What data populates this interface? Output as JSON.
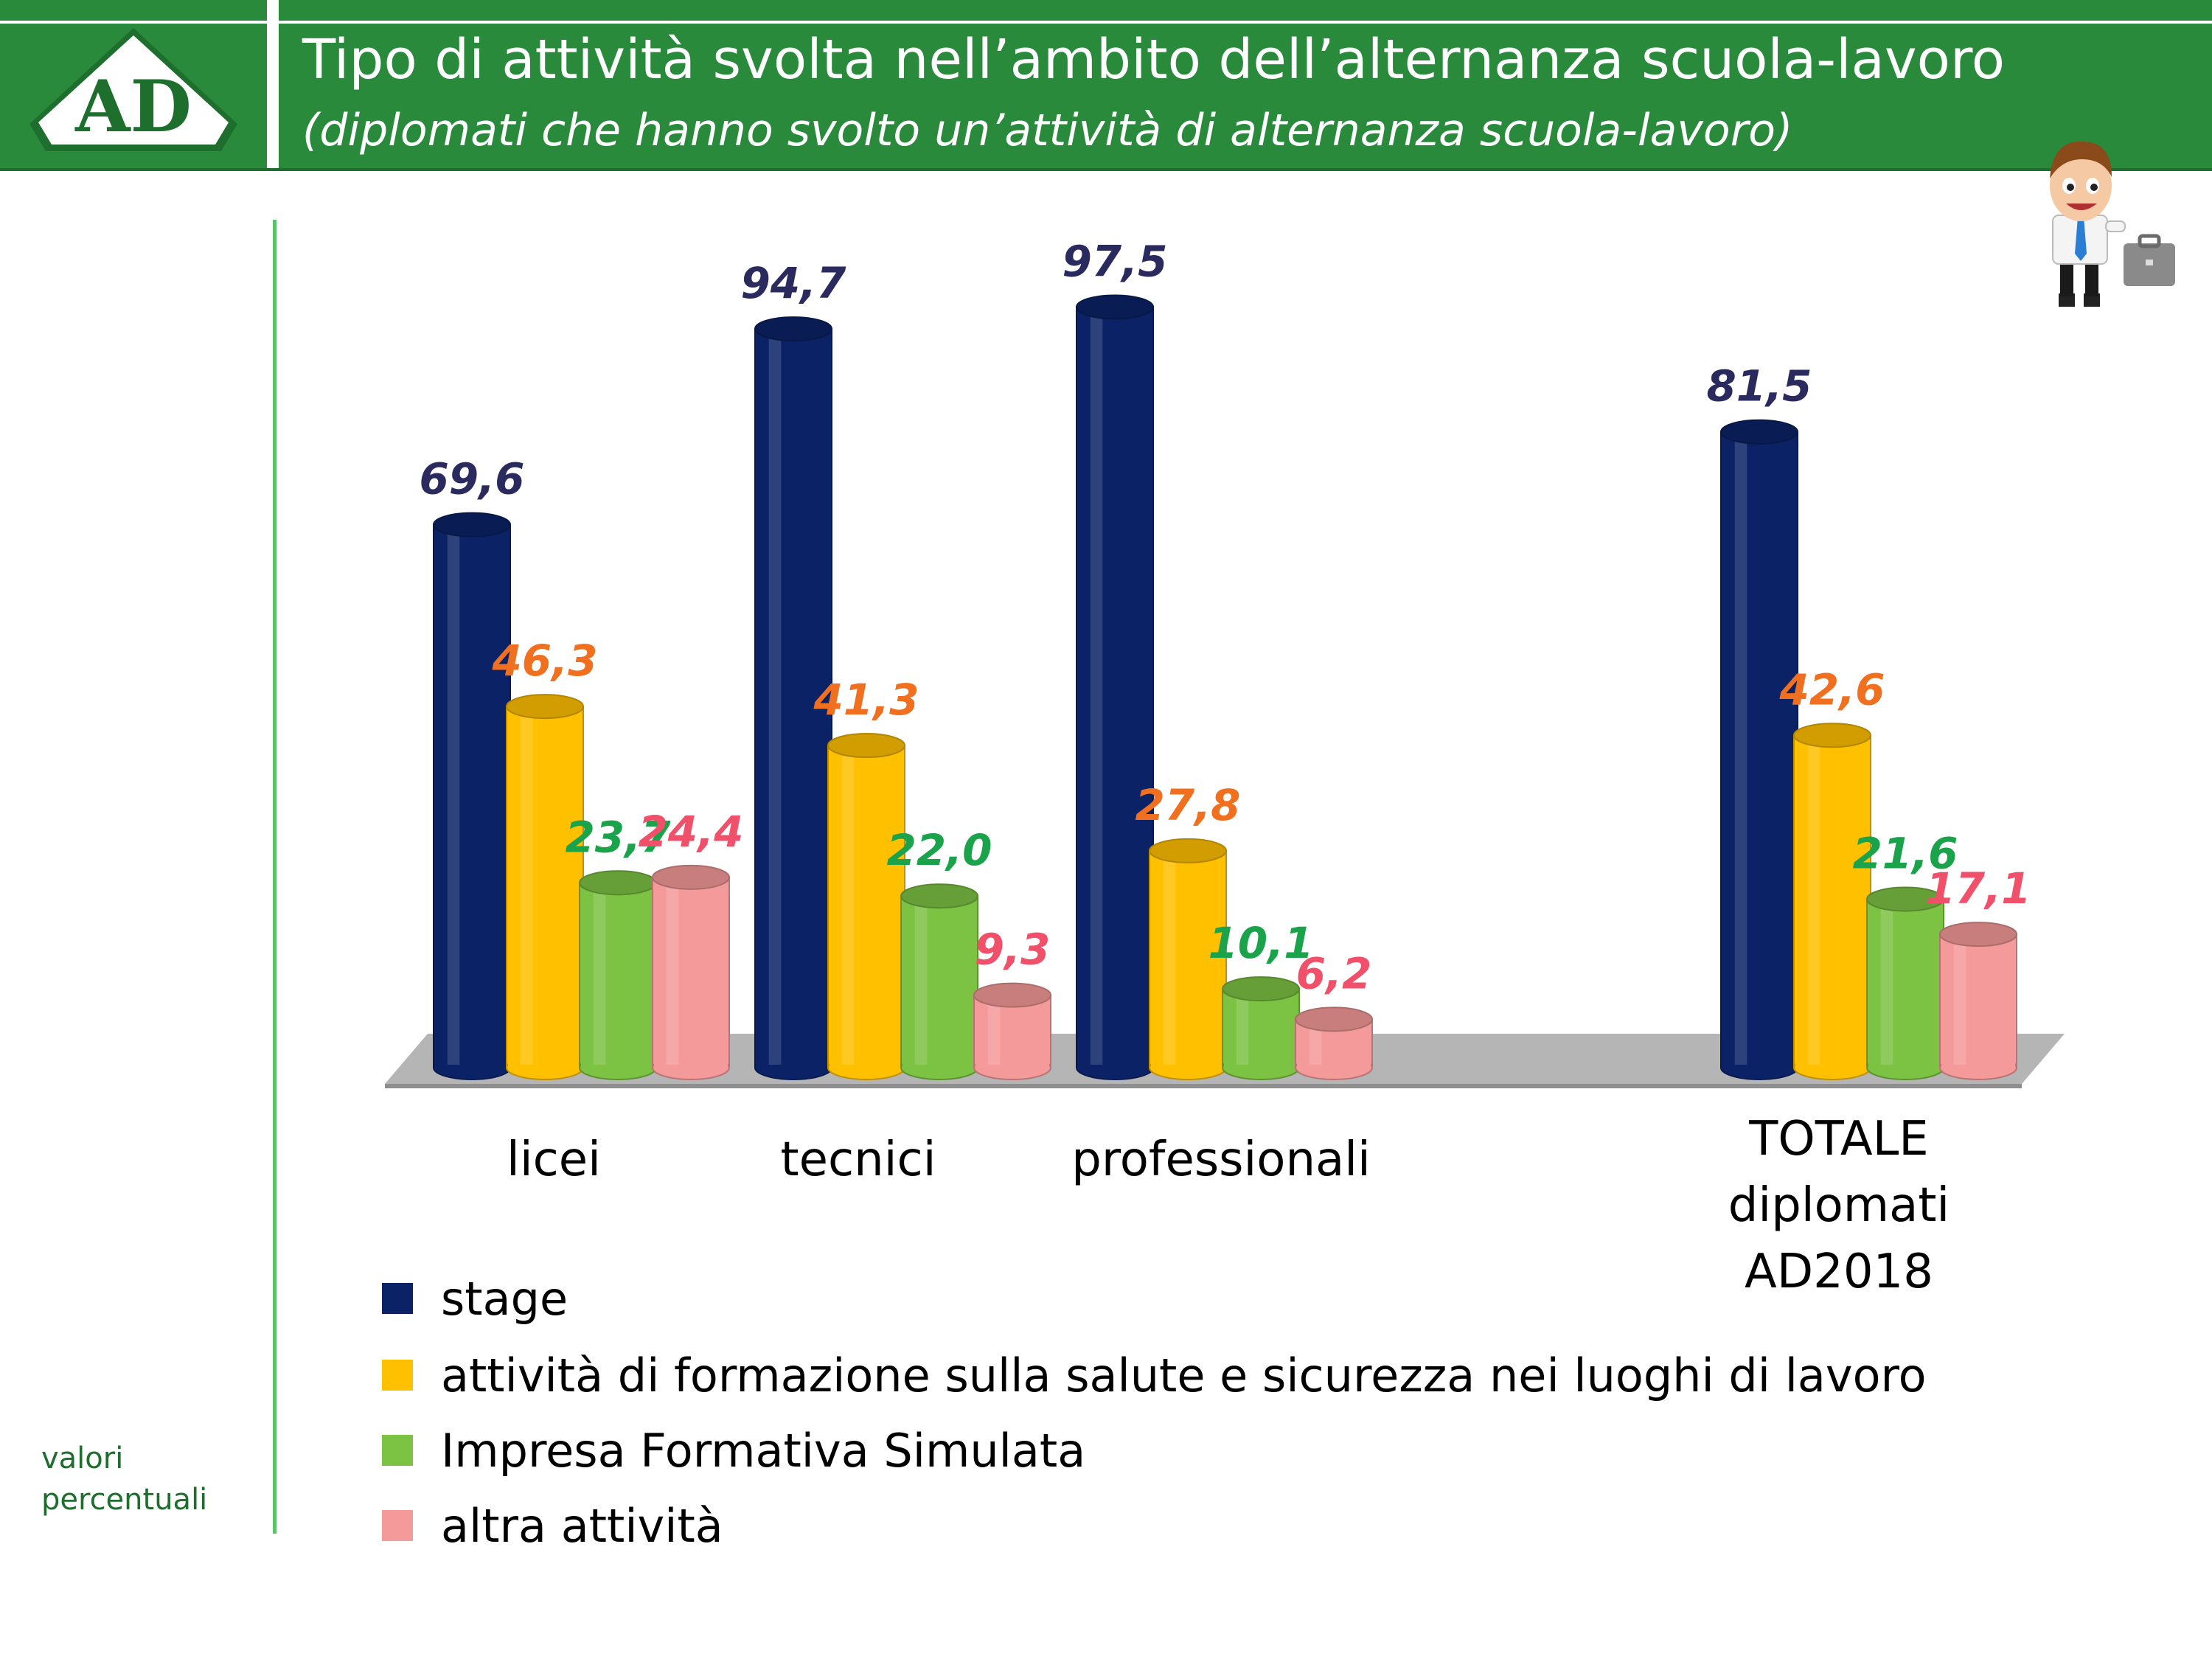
{
  "header": {
    "logo_text": "AD",
    "title": "Tipo di attività svolta nell’ambito dell’alternanza scuola-lavoro",
    "subtitle": "(diplomati che hanno svolto un’attività di alternanza scuola-lavoro)"
  },
  "unit_note": [
    "valori",
    "percentuali"
  ],
  "colors": {
    "header_green": "#2a8a3c",
    "stage": "#0b2266",
    "formazione": "#ffc000",
    "impresa": "#7cc243",
    "altra": "#f59a9a",
    "label_stage": "#2a2a5e",
    "label_formazione": "#f07020",
    "label_impresa": "#1aa34a",
    "label_altra": "#f0506a"
  },
  "chart_data": {
    "type": "bar",
    "categories": [
      [
        "licei"
      ],
      [
        "tecnici"
      ],
      [
        "professionali"
      ],
      [
        "TOTALE",
        "diplomati",
        "AD2018"
      ]
    ],
    "series": [
      {
        "name": "stage",
        "values": [
          69.6,
          94.7,
          97.5,
          81.5
        ],
        "labels": [
          "69,6",
          "94,7",
          "97,5",
          "81,5"
        ]
      },
      {
        "name": "attività di formazione sulla salute e sicurezza nei luoghi di lavoro",
        "values": [
          46.3,
          41.3,
          27.8,
          42.6
        ],
        "labels": [
          "46,3",
          "41,3",
          "27,8",
          "42,6"
        ]
      },
      {
        "name": "Impresa Formativa Simulata",
        "values": [
          23.7,
          22.0,
          10.1,
          21.6
        ],
        "labels": [
          "23,7",
          "22,0",
          "10,1",
          "21,6"
        ]
      },
      {
        "name": "altra attività",
        "values": [
          24.4,
          9.3,
          6.2,
          17.1
        ],
        "labels": [
          "24,4",
          "9,3",
          "6,2",
          "17,1"
        ]
      }
    ],
    "ylim": [
      0,
      100
    ],
    "grid": false,
    "legend_position": "bottom-left"
  }
}
